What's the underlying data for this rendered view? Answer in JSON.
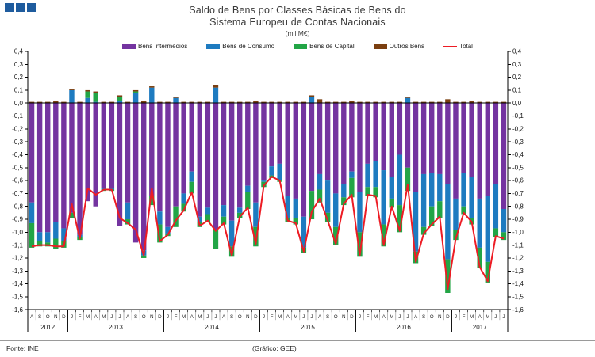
{
  "header": {
    "title_line1": "Saldo de Bens por Classes Básicas de Bens do",
    "title_line2": "Sistema Europeu de Contas Nacionais",
    "subtitle": "(mil M€)"
  },
  "footer": {
    "source": "Fonte: INE",
    "credit": "(Gráfico: GEE)"
  },
  "colors": {
    "logo_blue": "#1f5c9e",
    "axis": "#000000",
    "month_label": "#222222",
    "separator": "#777777"
  },
  "chart_data": {
    "type": "bar",
    "stacked": true,
    "title": "Saldo de Bens por Classes Básicas de Bens do Sistema Europeu de Contas Nacionais (mil M€)",
    "xlabel": "",
    "ylabel": "",
    "ylim": [
      -1.6,
      0.4
    ],
    "ytick_step": 0.1,
    "grid": false,
    "legend_position": "top",
    "decimal_comma": true,
    "mirrored_right_axis": true,
    "month_letters": [
      "A",
      "S",
      "O",
      "N",
      "D",
      "J",
      "F",
      "M",
      "A",
      "M",
      "J",
      "J",
      "A",
      "S",
      "O",
      "N",
      "D",
      "J",
      "F",
      "M",
      "A",
      "M",
      "J",
      "J",
      "A",
      "S",
      "O",
      "N",
      "D",
      "J",
      "F",
      "M",
      "A",
      "M",
      "J",
      "J",
      "A",
      "S",
      "O",
      "N",
      "D",
      "J",
      "F",
      "M",
      "A",
      "M",
      "J",
      "J",
      "A",
      "S",
      "O",
      "N",
      "D",
      "J",
      "F",
      "M",
      "A",
      "M",
      "J",
      "J"
    ],
    "year_groups": [
      {
        "year": "2012",
        "count": 5
      },
      {
        "year": "2013",
        "count": 12
      },
      {
        "year": "2014",
        "count": 12
      },
      {
        "year": "2015",
        "count": 12
      },
      {
        "year": "2016",
        "count": 12
      },
      {
        "year": "2017",
        "count": 7
      }
    ],
    "series": [
      {
        "name": "Bens Intermédios",
        "type": "bar",
        "color": "#7434a0",
        "values": [
          -0.77,
          -1.0,
          -1.0,
          -0.92,
          -0.97,
          -0.85,
          -1.02,
          -0.76,
          -0.8,
          -0.66,
          -0.66,
          -0.95,
          -0.77,
          -1.08,
          -1.14,
          -0.72,
          -0.84,
          -0.96,
          -0.8,
          -0.7,
          -0.53,
          -0.88,
          -0.81,
          -0.98,
          -0.79,
          -0.91,
          -0.81,
          -0.64,
          -0.77,
          -0.6,
          -0.49,
          -0.47,
          -0.72,
          -0.74,
          -0.88,
          -0.68,
          -0.55,
          -0.6,
          -0.7,
          -0.63,
          -0.53,
          -0.69,
          -0.47,
          -0.45,
          -0.52,
          -0.57,
          -0.4,
          -0.5,
          -0.69,
          -0.55,
          -0.54,
          -0.55,
          -0.63,
          -0.74,
          -0.54,
          -0.57,
          -0.74,
          -0.72,
          -0.63,
          -0.82
        ]
      },
      {
        "name": "Bens de Consumo",
        "type": "bar",
        "color": "#1e7bc0",
        "values": [
          -0.16,
          -0.07,
          -0.08,
          -0.13,
          -0.1,
          0.1,
          -0.02,
          0.04,
          0.01,
          -0.01,
          -0.01,
          0.02,
          -0.13,
          0.08,
          -0.04,
          0.12,
          -0.1,
          -0.05,
          0.04,
          -0.08,
          -0.08,
          -0.04,
          -0.05,
          0.12,
          -0.09,
          -0.2,
          -0.04,
          -0.05,
          -0.19,
          -0.01,
          -0.07,
          -0.13,
          -0.17,
          -0.15,
          -0.24,
          0.05,
          -0.12,
          -0.25,
          -0.26,
          -0.1,
          -0.05,
          -0.31,
          -0.18,
          -0.2,
          -0.42,
          -0.17,
          -0.39,
          0.04,
          -0.46,
          -0.41,
          -0.26,
          -0.21,
          -0.58,
          -0.24,
          -0.26,
          -0.32,
          -0.38,
          -0.51,
          -0.34,
          -0.18
        ]
      },
      {
        "name": "Bens de Capital",
        "type": "bar",
        "color": "#22a546",
        "values": [
          -0.19,
          -0.04,
          -0.03,
          -0.08,
          -0.05,
          -0.04,
          -0.02,
          0.05,
          0.07,
          -0.01,
          -0.01,
          0.03,
          -0.04,
          0.01,
          -0.02,
          -0.07,
          -0.14,
          -0.02,
          -0.16,
          -0.06,
          -0.09,
          -0.04,
          -0.06,
          -0.15,
          -0.06,
          -0.08,
          -0.04,
          -0.13,
          -0.15,
          -0.04,
          -0.02,
          -0.01,
          -0.03,
          -0.05,
          -0.04,
          -0.22,
          -0.1,
          -0.07,
          -0.14,
          -0.06,
          -0.15,
          -0.19,
          -0.07,
          -0.08,
          -0.17,
          -0.07,
          -0.21,
          -0.18,
          -0.09,
          -0.06,
          -0.15,
          -0.13,
          -0.26,
          -0.08,
          -0.06,
          -0.05,
          -0.16,
          -0.16,
          -0.07,
          -0.06
        ]
      },
      {
        "name": "Outros Bens",
        "type": "bar",
        "color": "#7b3f10",
        "values": [
          0.01,
          0.01,
          0.01,
          0.02,
          0.01,
          0.01,
          0.01,
          0.01,
          0.01,
          0.01,
          0.01,
          0.01,
          0.01,
          0.01,
          0.02,
          0.01,
          0.01,
          0.01,
          0.01,
          0.01,
          0.01,
          0.01,
          0.01,
          0.02,
          0.01,
          0.01,
          0.01,
          0.01,
          0.02,
          0.01,
          0.01,
          0.01,
          0.01,
          0.01,
          0.01,
          0.01,
          0.03,
          0.01,
          0.01,
          0.01,
          0.02,
          0.01,
          0.01,
          0.01,
          0.01,
          0.01,
          0.01,
          0.01,
          0.01,
          0.01,
          0.01,
          0.01,
          0.03,
          0.01,
          0.01,
          0.02,
          0.01,
          0.01,
          0.01,
          0.01
        ]
      },
      {
        "name": "Total",
        "type": "line",
        "color": "#ed1c24",
        "values": [
          -1.11,
          -1.1,
          -1.1,
          -1.11,
          -1.11,
          -0.78,
          -1.05,
          -0.66,
          -0.71,
          -0.67,
          -0.67,
          -0.89,
          -0.93,
          -0.98,
          -1.18,
          -0.66,
          -1.07,
          -1.02,
          -0.91,
          -0.83,
          -0.69,
          -0.95,
          -0.91,
          -0.99,
          -0.93,
          -1.18,
          -0.88,
          -0.81,
          -1.09,
          -0.64,
          -0.57,
          -0.6,
          -0.91,
          -0.93,
          -1.15,
          -0.84,
          -0.74,
          -0.91,
          -1.09,
          -0.78,
          -0.71,
          -1.18,
          -0.71,
          -0.72,
          -1.1,
          -0.8,
          -0.99,
          -0.63,
          -1.23,
          -1.01,
          -0.94,
          -0.88,
          -1.44,
          -1.05,
          -0.85,
          -0.92,
          -1.27,
          -1.38,
          -1.03,
          -1.05
        ]
      }
    ]
  }
}
